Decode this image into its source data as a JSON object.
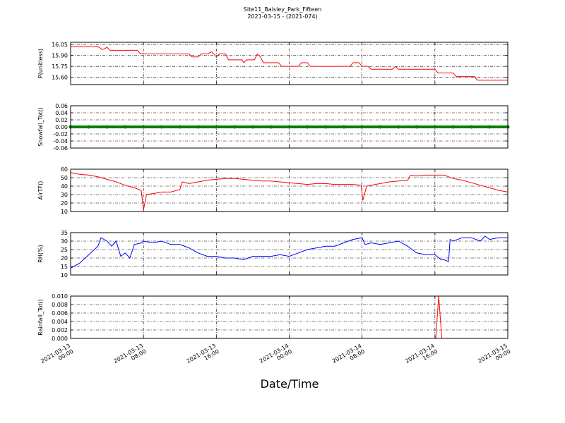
{
  "chart_data": [
    {
      "type": "line",
      "title": "Site11_Baisley_Park_Fifteen",
      "subtitle": "2021-03-15 - (2021-074)",
      "ylabel": "P(unitless)",
      "color": "#ff0000",
      "grid": true,
      "xlim": [
        "2021-03-13 00:00",
        "2021-03-15 00:00"
      ],
      "xticks": [
        "2021-03-13 00:00",
        "2021-03-13 08:00",
        "2021-03-13 16:00",
        "2021-03-14 00:00",
        "2021-03-14 08:00",
        "2021-03-14 16:00",
        "2021-03-15 00:00"
      ],
      "ylim": [
        15.5,
        16.08
      ],
      "yticks": [
        16.05,
        {
          "value": 15.9,
          "label": "15.90"
        },
        15.75,
        {
          "value": 15.6,
          "label": "15.60"
        }
      ],
      "x": [
        "2021-03-13 00:00",
        "2021-03-13 03:00",
        "2021-03-13 03:30",
        "2021-03-13 04:00",
        "2021-03-13 04:20",
        "2021-03-13 07:20",
        "2021-03-13 07:40",
        "2021-03-13 13:00",
        "2021-03-13 13:20",
        "2021-03-13 14:00",
        "2021-03-13 14:20",
        "2021-03-13 15:00",
        "2021-03-13 15:30",
        "2021-03-13 16:00",
        "2021-03-13 16:20",
        "2021-03-13 17:00",
        "2021-03-13 17:20",
        "2021-03-13 18:50",
        "2021-03-13 19:00",
        "2021-03-13 19:20",
        "2021-03-13 20:10",
        "2021-03-13 20:30",
        "2021-03-13 20:50",
        "2021-03-13 21:10",
        "2021-03-13 22:50",
        "2021-03-13 23:10",
        "2021-03-14 01:00",
        "2021-03-14 01:20",
        "2021-03-14 02:00",
        "2021-03-14 02:20",
        "2021-03-14 06:40",
        "2021-03-14 07:00",
        "2021-03-14 07:40",
        "2021-03-14 08:00",
        "2021-03-14 08:40",
        "2021-03-14 09:00",
        "2021-03-14 11:20",
        "2021-03-14 11:40",
        "2021-03-14 12:00",
        "2021-03-14 16:00",
        "2021-03-14 16:20",
        "2021-03-14 18:00",
        "2021-03-14 18:20",
        "2021-03-14 20:20",
        "2021-03-14 20:40",
        "2021-03-15 00:00"
      ],
      "values": [
        16.02,
        16.02,
        15.98,
        16.01,
        15.97,
        15.97,
        15.92,
        15.92,
        15.88,
        15.88,
        15.92,
        15.92,
        15.95,
        15.88,
        15.92,
        15.92,
        15.84,
        15.84,
        15.8,
        15.84,
        15.84,
        15.92,
        15.88,
        15.8,
        15.8,
        15.75,
        15.75,
        15.8,
        15.8,
        15.75,
        15.75,
        15.8,
        15.8,
        15.75,
        15.75,
        15.71,
        15.71,
        15.75,
        15.71,
        15.71,
        15.66,
        15.66,
        15.61,
        15.61,
        15.56,
        15.56
      ]
    },
    {
      "type": "scatter",
      "ylabel": "Snowfall_Tot()",
      "color": "#008000",
      "grid": true,
      "xlim": [
        "2021-03-13 00:00",
        "2021-03-15 00:00"
      ],
      "xticks": [
        "2021-03-13 00:00",
        "2021-03-13 08:00",
        "2021-03-13 16:00",
        "2021-03-14 00:00",
        "2021-03-14 08:00",
        "2021-03-14 16:00",
        "2021-03-15 00:00"
      ],
      "ylim": [
        -0.06,
        0.06
      ],
      "yticks": [
        0.06,
        0.04,
        0.02,
        {
          "value": 0,
          "label": "0.00"
        },
        -0.02,
        -0.04,
        -0.06
      ],
      "x": [
        "2021-03-13 00:00",
        "2021-03-13 02:00",
        "2021-03-13 04:00",
        "2021-03-13 06:00",
        "2021-03-13 08:00",
        "2021-03-13 10:00",
        "2021-03-13 12:00",
        "2021-03-13 14:00",
        "2021-03-13 16:00",
        "2021-03-13 18:00",
        "2021-03-13 20:00",
        "2021-03-13 22:00",
        "2021-03-14 00:00",
        "2021-03-14 02:00",
        "2021-03-14 04:00",
        "2021-03-14 06:00",
        "2021-03-14 08:00",
        "2021-03-14 10:00",
        "2021-03-14 12:00",
        "2021-03-14 14:00",
        "2021-03-14 16:00",
        "2021-03-14 18:00",
        "2021-03-14 20:00",
        "2021-03-14 22:00",
        "2021-03-15 00:00"
      ],
      "values": [
        0,
        0,
        0,
        0,
        0,
        0,
        0,
        0,
        0,
        0,
        0,
        0,
        0,
        0,
        0,
        0,
        0,
        0,
        0,
        0,
        0,
        0,
        0,
        0,
        0
      ]
    },
    {
      "type": "line",
      "ylabel": "AirTF()",
      "color": "#ff0000",
      "grid": true,
      "xlim": [
        "2021-03-13 00:00",
        "2021-03-15 00:00"
      ],
      "xticks": [
        "2021-03-13 00:00",
        "2021-03-13 08:00",
        "2021-03-13 16:00",
        "2021-03-14 00:00",
        "2021-03-14 08:00",
        "2021-03-14 16:00",
        "2021-03-15 00:00"
      ],
      "ylim": [
        10,
        60
      ],
      "yticks": [
        10,
        20,
        30,
        40,
        50,
        60
      ],
      "x": [
        "2021-03-13 00:00",
        "2021-03-13 01:00",
        "2021-03-13 02:00",
        "2021-03-13 03:00",
        "2021-03-13 04:00",
        "2021-03-13 05:00",
        "2021-03-13 06:00",
        "2021-03-13 07:00",
        "2021-03-13 07:45",
        "2021-03-13 08:00",
        "2021-03-13 08:20",
        "2021-03-13 09:00",
        "2021-03-13 10:00",
        "2021-03-13 11:00",
        "2021-03-13 12:00",
        "2021-03-13 12:15",
        "2021-03-13 13:00",
        "2021-03-13 14:00",
        "2021-03-13 15:00",
        "2021-03-13 16:00",
        "2021-03-13 17:00",
        "2021-03-13 18:00",
        "2021-03-13 19:00",
        "2021-03-13 20:00",
        "2021-03-13 21:00",
        "2021-03-13 22:00",
        "2021-03-13 23:00",
        "2021-03-14 00:00",
        "2021-03-14 01:00",
        "2021-03-14 02:00",
        "2021-03-14 03:00",
        "2021-03-14 04:00",
        "2021-03-14 05:00",
        "2021-03-14 06:00",
        "2021-03-14 07:00",
        "2021-03-14 07:55",
        "2021-03-14 08:05",
        "2021-03-14 08:30",
        "2021-03-14 09:00",
        "2021-03-14 10:00",
        "2021-03-14 11:00",
        "2021-03-14 12:00",
        "2021-03-14 13:00",
        "2021-03-14 13:20",
        "2021-03-14 14:00",
        "2021-03-14 15:00",
        "2021-03-14 16:00",
        "2021-03-14 17:00",
        "2021-03-14 17:30",
        "2021-03-14 18:00",
        "2021-03-14 19:00",
        "2021-03-14 20:00",
        "2021-03-14 21:00",
        "2021-03-14 22:00",
        "2021-03-14 23:00",
        "2021-03-15 00:00"
      ],
      "values": [
        56,
        54,
        53,
        51,
        48,
        45,
        41,
        38,
        35,
        12,
        30,
        31,
        33,
        33,
        36,
        45,
        43,
        45,
        47,
        48,
        49,
        49,
        48,
        47,
        46,
        46,
        45,
        44,
        43,
        42,
        43,
        43,
        42,
        42,
        42,
        41,
        23,
        40,
        41,
        43,
        45,
        46,
        47,
        53,
        52,
        53,
        53,
        53,
        51,
        49,
        47,
        44,
        41,
        38,
        35,
        33
      ]
    },
    {
      "type": "line",
      "ylabel": "RH(%)",
      "color": "#0000ff",
      "grid": true,
      "xlim": [
        "2021-03-13 00:00",
        "2021-03-15 00:00"
      ],
      "xticks": [
        "2021-03-13 00:00",
        "2021-03-13 08:00",
        "2021-03-13 16:00",
        "2021-03-14 00:00",
        "2021-03-14 08:00",
        "2021-03-14 16:00",
        "2021-03-15 00:00"
      ],
      "ylim": [
        10,
        35
      ],
      "yticks": [
        10,
        15,
        20,
        25,
        30,
        35
      ],
      "x": [
        "2021-03-13 00:00",
        "2021-03-13 01:00",
        "2021-03-13 02:00",
        "2021-03-13 03:00",
        "2021-03-13 03:20",
        "2021-03-13 04:00",
        "2021-03-13 04:30",
        "2021-03-13 05:00",
        "2021-03-13 05:30",
        "2021-03-13 06:00",
        "2021-03-13 06:30",
        "2021-03-13 07:00",
        "2021-03-13 07:50",
        "2021-03-13 08:00",
        "2021-03-13 09:00",
        "2021-03-13 10:00",
        "2021-03-13 11:00",
        "2021-03-13 12:00",
        "2021-03-13 13:00",
        "2021-03-13 14:00",
        "2021-03-13 15:00",
        "2021-03-13 16:00",
        "2021-03-13 17:00",
        "2021-03-13 18:00",
        "2021-03-13 19:00",
        "2021-03-13 20:00",
        "2021-03-13 21:00",
        "2021-03-13 22:00",
        "2021-03-13 23:00",
        "2021-03-14 00:00",
        "2021-03-14 01:00",
        "2021-03-14 02:00",
        "2021-03-14 03:00",
        "2021-03-14 04:00",
        "2021-03-14 05:00",
        "2021-03-14 06:00",
        "2021-03-14 07:00",
        "2021-03-14 08:00",
        "2021-03-14 08:20",
        "2021-03-14 09:00",
        "2021-03-14 10:00",
        "2021-03-14 11:00",
        "2021-03-14 12:00",
        "2021-03-14 13:00",
        "2021-03-14 14:00",
        "2021-03-14 15:00",
        "2021-03-14 16:00",
        "2021-03-14 16:40",
        "2021-03-14 17:00",
        "2021-03-14 17:30",
        "2021-03-14 17:40",
        "2021-03-14 18:00",
        "2021-03-14 19:00",
        "2021-03-14 20:00",
        "2021-03-14 21:00",
        "2021-03-14 21:30",
        "2021-03-14 22:00",
        "2021-03-14 23:00",
        "2021-03-15 00:00"
      ],
      "values": [
        14,
        17,
        22,
        27,
        32,
        30,
        27,
        30,
        21,
        23,
        20,
        28,
        29,
        30,
        29,
        30,
        28,
        28,
        26,
        23,
        21,
        21,
        20,
        20,
        19,
        21,
        21,
        21,
        22,
        21,
        23,
        25,
        26,
        27,
        27,
        29,
        31,
        32,
        28,
        29,
        28,
        29,
        30,
        27,
        23,
        22,
        22,
        19,
        19,
        18,
        31,
        30,
        32,
        32,
        30,
        33,
        31,
        32,
        32
      ]
    },
    {
      "type": "line",
      "ylabel": "Rainfall_Tot()",
      "xlabel": "Date/Time",
      "color": "#ff0000",
      "grid": true,
      "xlim": [
        "2021-03-13 00:00",
        "2021-03-15 00:00"
      ],
      "xticks": [
        "2021-03-13 00:00",
        "2021-03-13 08:00",
        "2021-03-13 16:00",
        "2021-03-14 00:00",
        "2021-03-14 08:00",
        "2021-03-14 16:00",
        "2021-03-15 00:00"
      ],
      "ylim": [
        0,
        0.01
      ],
      "yticks": [
        {
          "value": 0,
          "label": "0.000"
        },
        {
          "value": 0.002,
          "label": "0.002"
        },
        {
          "value": 0.004,
          "label": "0.004"
        },
        {
          "value": 0.006,
          "label": "0.006"
        },
        {
          "value": 0.008,
          "label": "0.008"
        },
        {
          "value": 0.01,
          "label": "0.010"
        }
      ],
      "x": [
        "2021-03-13 00:00",
        "2021-03-14 16:05",
        "2021-03-14 16:25",
        "2021-03-14 16:45",
        "2021-03-15 00:00"
      ],
      "values": [
        0,
        0,
        0.01,
        0,
        0
      ]
    }
  ]
}
